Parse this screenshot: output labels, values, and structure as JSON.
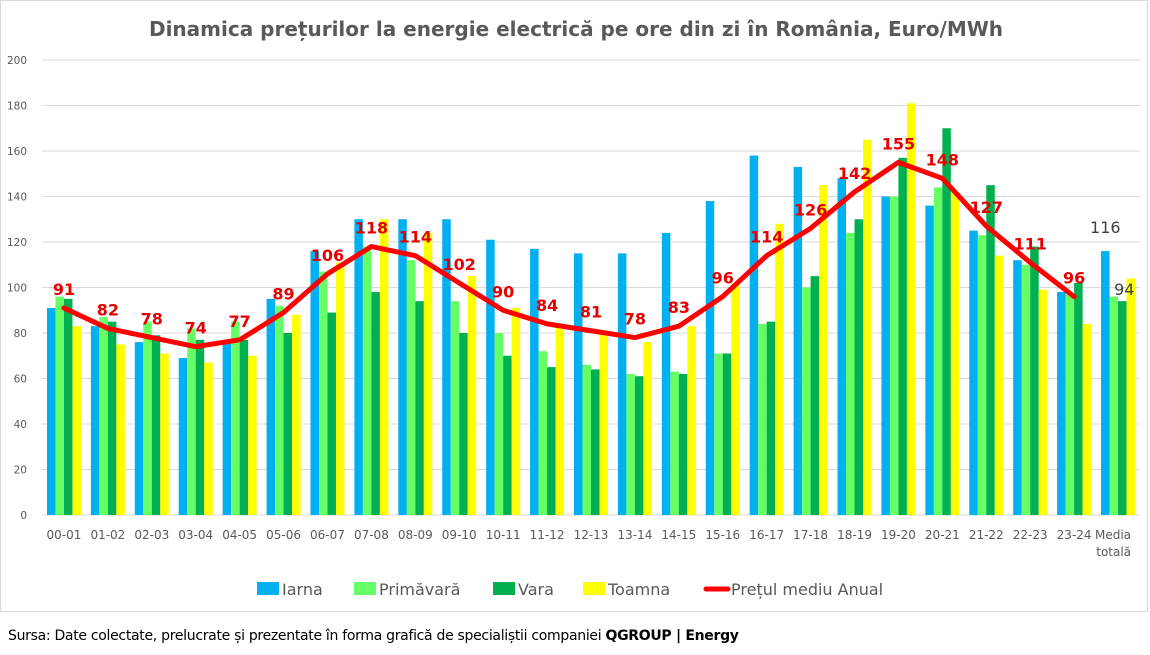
{
  "chart_data": {
    "type": "bar",
    "title": "Dinamica prețurilor la energie electrică pe ore din zi în România, Euro/MWh",
    "xlabel": "",
    "ylabel": "",
    "ylim": [
      0,
      200
    ],
    "yticks": [
      0,
      20,
      40,
      60,
      80,
      100,
      120,
      140,
      160,
      180,
      200
    ],
    "grid": true,
    "legend_position": "bottom",
    "categories": [
      "00-01",
      "01-02",
      "02-03",
      "03-04",
      "04-05",
      "05-06",
      "06-07",
      "07-08",
      "08-09",
      "09-10",
      "10-11",
      "11-12",
      "12-13",
      "13-14",
      "14-15",
      "15-16",
      "16-17",
      "17-18",
      "18-19",
      "19-20",
      "20-21",
      "21-22",
      "22-23",
      "23-24",
      "Media totală"
    ],
    "series": [
      {
        "name": "Iarna",
        "kind": "bar",
        "color": "#00b0f0",
        "values": [
          91,
          83,
          76,
          69,
          76,
          95,
          116,
          130,
          130,
          130,
          121,
          117,
          115,
          115,
          124,
          138,
          158,
          153,
          148,
          140,
          136,
          125,
          112,
          98,
          116
        ]
      },
      {
        "name": "Primăvară",
        "kind": "bar",
        "color": "#66ff66",
        "values": [
          96,
          87,
          85,
          82,
          85,
          92,
          107,
          118,
          112,
          94,
          80,
          72,
          66,
          62,
          63,
          71,
          84,
          100,
          124,
          140,
          144,
          123,
          110,
          97,
          96
        ]
      },
      {
        "name": "Vara",
        "kind": "bar",
        "color": "#00b050",
        "values": [
          95,
          85,
          79,
          77,
          77,
          80,
          89,
          98,
          94,
          80,
          70,
          65,
          64,
          61,
          62,
          71,
          85,
          105,
          130,
          157,
          170,
          145,
          118,
          102,
          94
        ]
      },
      {
        "name": "Toamna",
        "kind": "bar",
        "color": "#ffff00",
        "values": [
          83,
          75,
          71,
          67,
          70,
          88,
          111,
          130,
          124,
          105,
          91,
          83,
          80,
          76,
          83,
          102,
          128,
          145,
          165,
          181,
          142,
          114,
          99,
          84,
          104
        ]
      },
      {
        "name": "Prețul mediu Anual",
        "kind": "line",
        "color": "#ff0000",
        "values": [
          91,
          82,
          78,
          74,
          77,
          89,
          106,
          118,
          114,
          102,
          90,
          84,
          81,
          78,
          83,
          96,
          114,
          126,
          142,
          155,
          148,
          127,
          111,
          96,
          null
        ],
        "data_labels": [
          "91",
          "82",
          "78",
          "74",
          "77",
          "89",
          "106",
          "118",
          "114",
          "102",
          "90",
          "84",
          "81",
          "78",
          "83",
          "96",
          "114",
          "126",
          "142",
          "155",
          "148",
          "127",
          "111",
          "96",
          ""
        ]
      }
    ],
    "annotations": [
      {
        "category": "Media totală",
        "series": "Iarna",
        "text": "116"
      },
      {
        "category": "Media totală",
        "series": "Vara",
        "text": "94"
      }
    ]
  },
  "footer": {
    "source_prefix": "Sursa: Date colectate, prelucrate și prezentate în forma grafică de specialiștii companiei ",
    "source_brand": "QGROUP | Energy"
  }
}
